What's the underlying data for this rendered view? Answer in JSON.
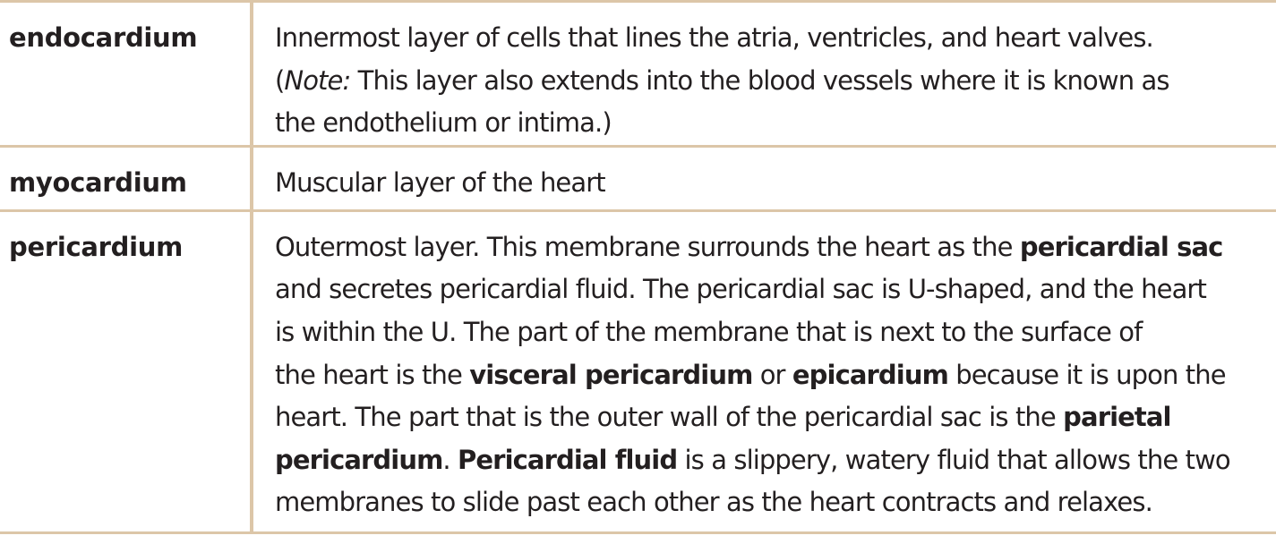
{
  "rows": [
    {
      "term": "endocardium",
      "def_lines": [
        "Innermost layer of cells that lines the atria, ventricles, and heart valves.",
        "This layer also extends into the blood vessels where it is known as",
        "the endothelium or intima.)"
      ],
      "note_open": "(",
      "note_label": "Note:"
    },
    {
      "term": "myocardium",
      "def_lines": [
        "Muscular layer of the heart"
      ]
    },
    {
      "term": "pericardium",
      "seg": {
        "l1a": "Outermost layer. This membrane surrounds the heart as the ",
        "l1b": "pericardial sac",
        "l2": "and secretes pericardial fluid. The pericardial sac is U-shaped, and the heart",
        "l3": "is within the U. The part of the membrane that is next to the surface of",
        "l4a": "the heart is the ",
        "l4b": "visceral pericardium",
        "l4c": " or ",
        "l4d": "epicardium",
        "l4e": " because it is upon the",
        "l5a": "heart. The part that is the outer wall of the pericardial sac is the ",
        "l5b": "parietal",
        "l6a": "pericardium",
        "l6b": ". ",
        "l6c": "Pericardial fluid",
        "l6d": " is a slippery, watery fluid that allows the two",
        "l7": "membranes to slide past each other as the heart contracts and relaxes."
      }
    }
  ]
}
